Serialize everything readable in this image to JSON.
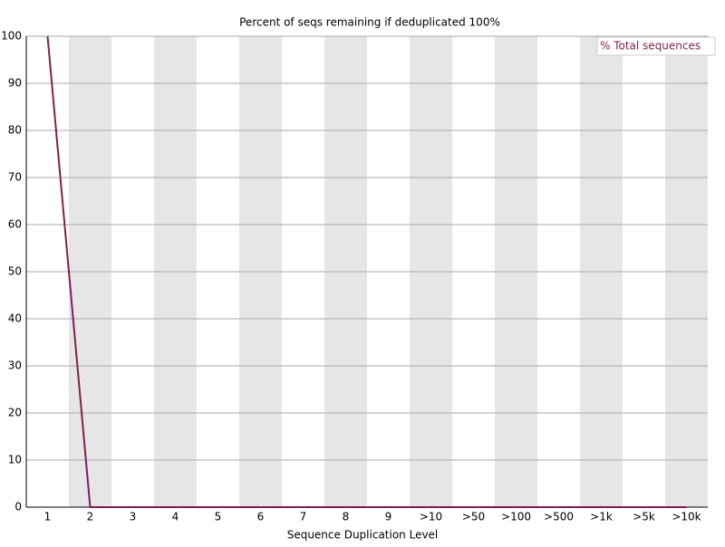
{
  "chart_data": {
    "type": "line",
    "title": "Percent of seqs remaining if deduplicated 100%",
    "x_label": "Sequence Duplication Level",
    "categories": [
      "1",
      "2",
      "3",
      "4",
      "5",
      "6",
      "7",
      "8",
      "9",
      ">10",
      ">50",
      ">100",
      ">500",
      ">1k",
      ">5k",
      ">10k"
    ],
    "series": [
      {
        "name": "% Total sequences",
        "color": "#7f1f4f",
        "values": [
          100,
          0,
          0,
          0,
          0,
          0,
          0,
          0,
          0,
          0,
          0,
          0,
          0,
          0,
          0,
          0
        ]
      }
    ],
    "ylim": [
      0,
      100
    ],
    "yticks": [
      0,
      10,
      20,
      30,
      40,
      50,
      60,
      70,
      80,
      90,
      100
    ],
    "grid": true,
    "legend_position": "upper right"
  }
}
